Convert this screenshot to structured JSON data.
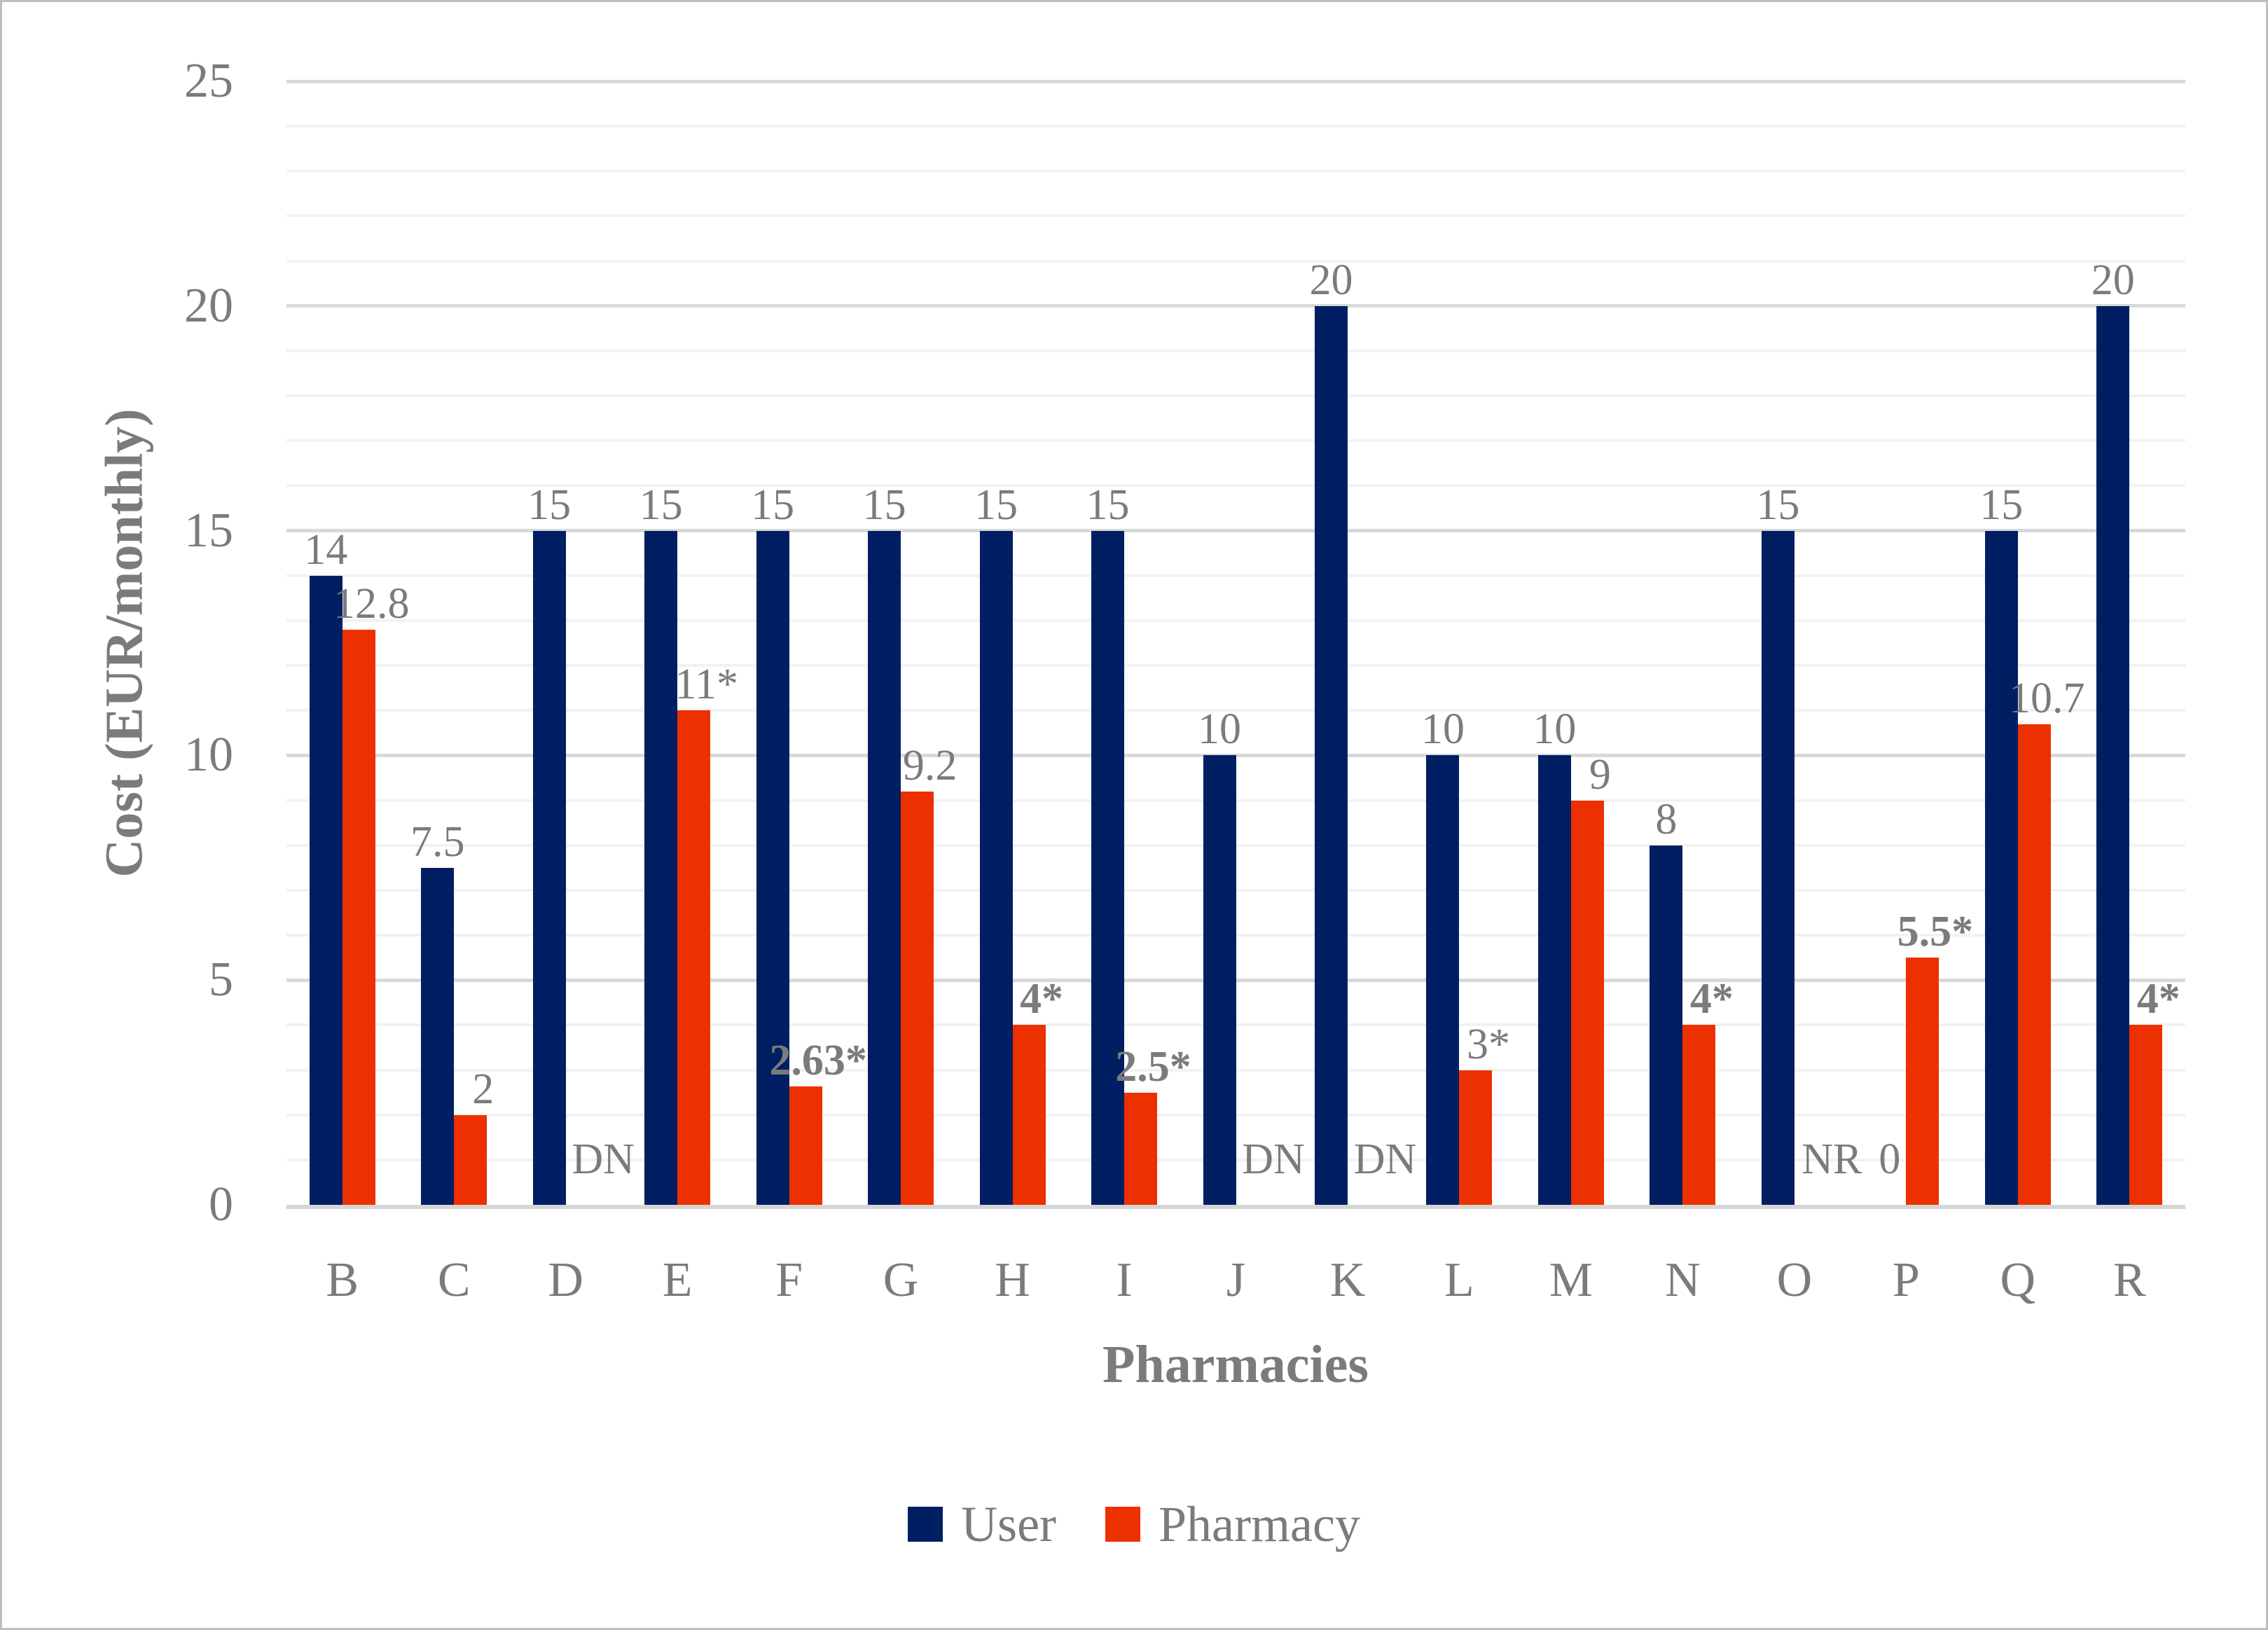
{
  "figure": {
    "background": "#FFFFFF",
    "border_color": "#BEBEBE"
  },
  "styles": {
    "text_color": "#7B7B7B",
    "grid_minor_color": "#F2F2F2",
    "grid_major_color": "#D9D9D9"
  },
  "chart_data": {
    "type": "bar",
    "title": "",
    "xlabel": "Pharmacies",
    "ylabel": "Cost (EUR/monthly)",
    "ylim": [
      0,
      25
    ],
    "y_ticks": [
      0,
      5,
      10,
      15,
      20,
      25
    ],
    "y_minor_unit": 1,
    "y_major_unit": 5,
    "grid": true,
    "legend_position": "bottom",
    "categories": [
      "B",
      "C",
      "D",
      "E",
      "F",
      "G",
      "H",
      "I",
      "J",
      "K",
      "L",
      "M",
      "N",
      "O",
      "P",
      "Q",
      "R"
    ],
    "series": [
      {
        "name": "User",
        "color": "#001F62",
        "values": [
          14,
          7.5,
          15,
          15,
          15,
          15,
          15,
          15,
          10,
          20,
          10,
          10,
          8,
          15,
          0,
          15,
          20
        ],
        "labels": [
          "14",
          "7.5",
          "15",
          "15",
          "15",
          "15",
          "15",
          "15",
          "10",
          "20",
          "10",
          "10",
          "8",
          "15",
          "0",
          "15",
          "20"
        ],
        "bold_labels": [
          false,
          false,
          false,
          false,
          false,
          false,
          false,
          false,
          false,
          false,
          false,
          false,
          false,
          false,
          false,
          false,
          false
        ]
      },
      {
        "name": "Pharmacy",
        "color": "#ED3000",
        "values": [
          12.8,
          2,
          null,
          11,
          2.63,
          9.2,
          4,
          2.5,
          null,
          null,
          3,
          9,
          4,
          null,
          5.5,
          10.7,
          4
        ],
        "labels": [
          "12.8",
          "2",
          "DN",
          "11*",
          "2.63*",
          "9.2",
          "4*",
          "2.5*",
          "DN",
          "DN",
          "3*",
          "9",
          "4*",
          "NR",
          "5.5*",
          "10.7",
          "4*"
        ],
        "bold_labels": [
          false,
          false,
          false,
          false,
          true,
          false,
          true,
          true,
          false,
          false,
          false,
          false,
          true,
          false,
          true,
          false,
          true
        ]
      }
    ],
    "missing_value_notes": {
      "D": "DN",
      "J": "DN",
      "K": "DN",
      "O": "NR"
    }
  }
}
